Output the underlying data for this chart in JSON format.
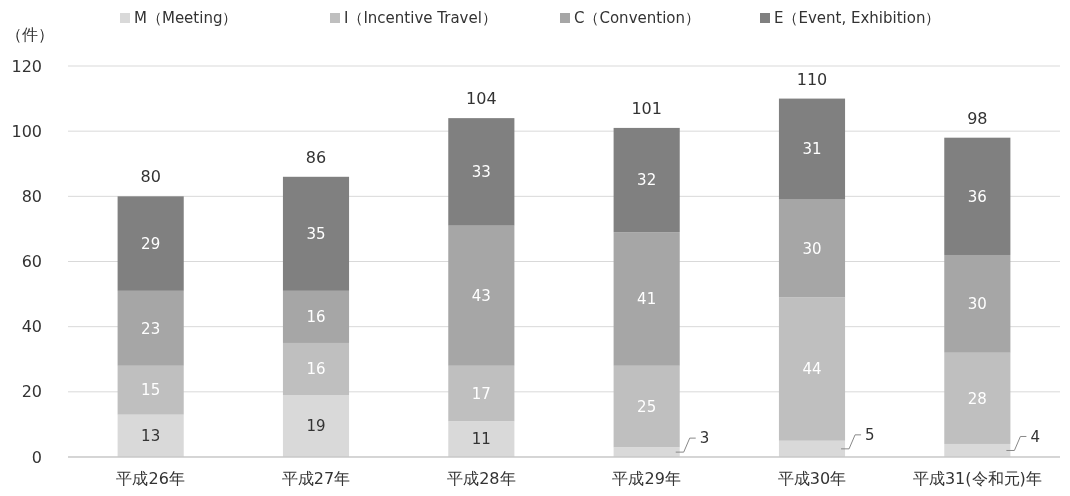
{
  "chart_data": {
    "type": "bar",
    "stacked": true,
    "ylabel": "（件）",
    "categories": [
      "平成26年",
      "平成27年",
      "平成28年",
      "平成29年",
      "平成30年",
      "平成31(令和元)年"
    ],
    "series": [
      {
        "name": "M（Meeting）",
        "color": "#d9d9d9",
        "values": [
          13,
          19,
          11,
          3,
          5,
          4
        ]
      },
      {
        "name": "I（Incentive Travel）",
        "color": "#bfbfbf",
        "values": [
          15,
          16,
          17,
          25,
          44,
          28
        ]
      },
      {
        "name": "C（Convention）",
        "color": "#a6a6a6",
        "values": [
          23,
          16,
          43,
          41,
          30,
          30
        ]
      },
      {
        "name": "E（Event, Exhibition）",
        "color": "#808080",
        "values": [
          29,
          35,
          33,
          32,
          31,
          36
        ]
      }
    ],
    "totals": [
      "80",
      "86",
      "104",
      "101",
      "110",
      "98"
    ],
    "data_labels": true,
    "ylim": [
      0,
      120
    ],
    "yticks": [
      0,
      20,
      40,
      60,
      80,
      100,
      120
    ],
    "grid": "y",
    "legend": "top"
  }
}
